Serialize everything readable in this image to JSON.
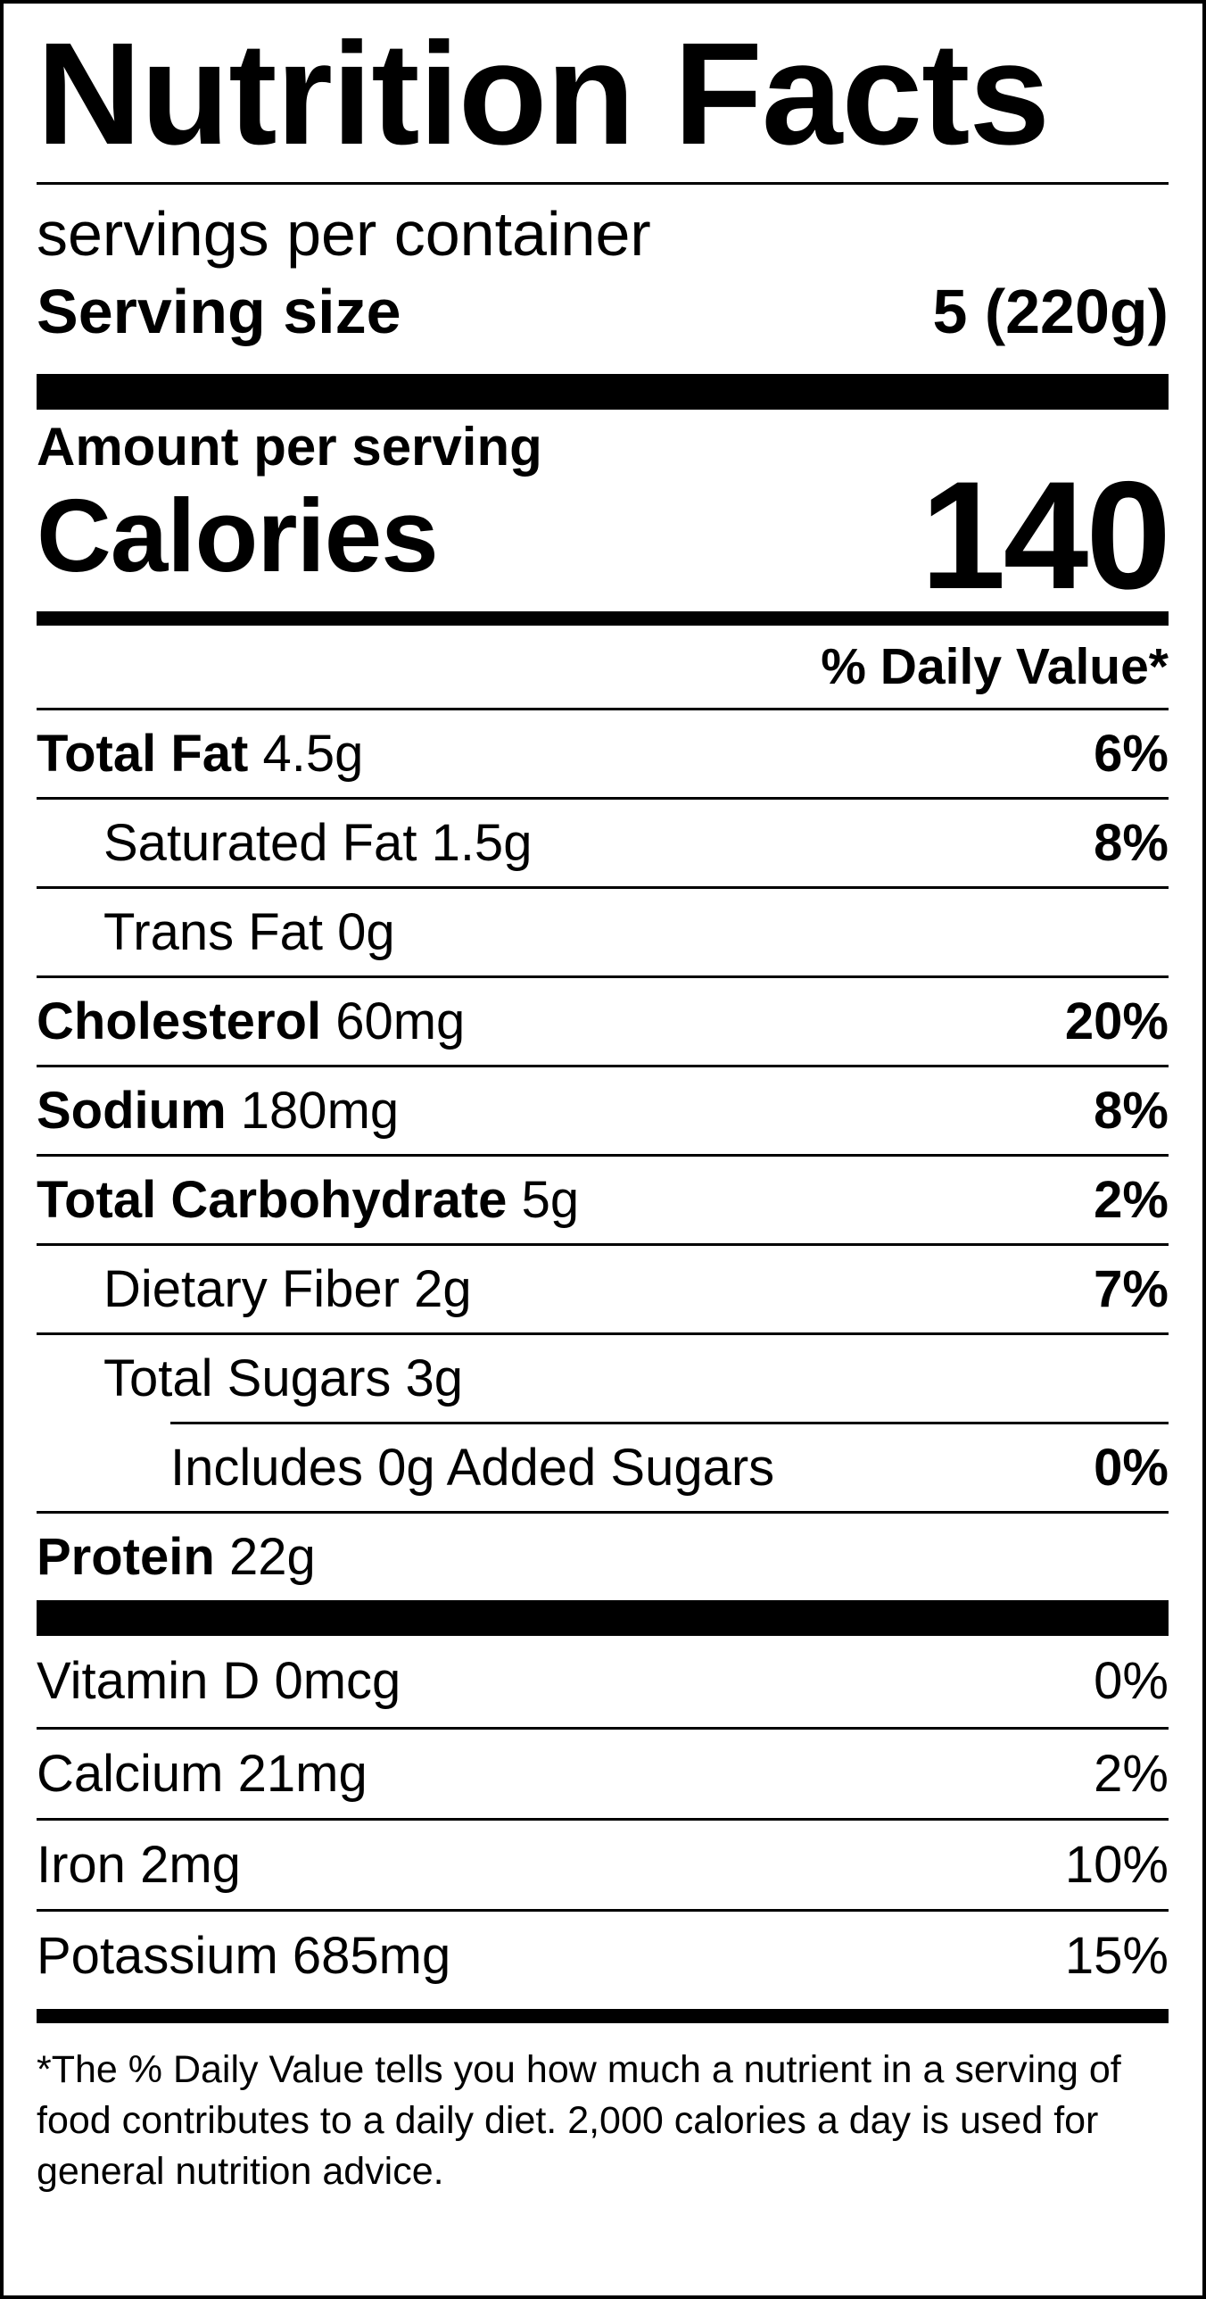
{
  "label": {
    "title": "Nutrition Facts",
    "servings_per_container": "servings per container",
    "serving_size_label": "Serving size",
    "serving_size_value": "5 (220g)",
    "amount_per_serving": "Amount per serving",
    "calories_label": "Calories",
    "calories_value": "140",
    "daily_value_header": "% Daily Value*"
  },
  "nutrients": [
    {
      "name": "Total Fat",
      "amount": "4.5g",
      "dv": "6%"
    },
    {
      "name": "Saturated Fat",
      "amount": "1.5g",
      "dv": "8%"
    },
    {
      "name": "Trans Fat",
      "amount": "0g",
      "dv": ""
    },
    {
      "name": "Cholesterol",
      "amount": "60mg",
      "dv": "20%"
    },
    {
      "name": "Sodium",
      "amount": "180mg",
      "dv": "8%"
    },
    {
      "name": "Total Carbohydrate",
      "amount": "5g",
      "dv": "2%"
    },
    {
      "name": "Dietary Fiber",
      "amount": "2g",
      "dv": "7%"
    },
    {
      "name": "Total Sugars",
      "amount": "3g",
      "dv": ""
    },
    {
      "name": "Includes 0g Added Sugars",
      "amount": "",
      "dv": "0%"
    },
    {
      "name": "Protein",
      "amount": "22g",
      "dv": ""
    }
  ],
  "vitamins": [
    {
      "name": "Vitamin D",
      "amount": "0mcg",
      "dv": "0%"
    },
    {
      "name": "Calcium",
      "amount": "21mg",
      "dv": "2%"
    },
    {
      "name": "Iron",
      "amount": "2mg",
      "dv": "10%"
    },
    {
      "name": "Potassium",
      "amount": "685mg",
      "dv": "15%"
    }
  ],
  "footnote": "*The % Daily Value tells you how much a nutrient in a serving of food contributes to a daily diet. 2,000 calories a day is used for general nutrition advice."
}
